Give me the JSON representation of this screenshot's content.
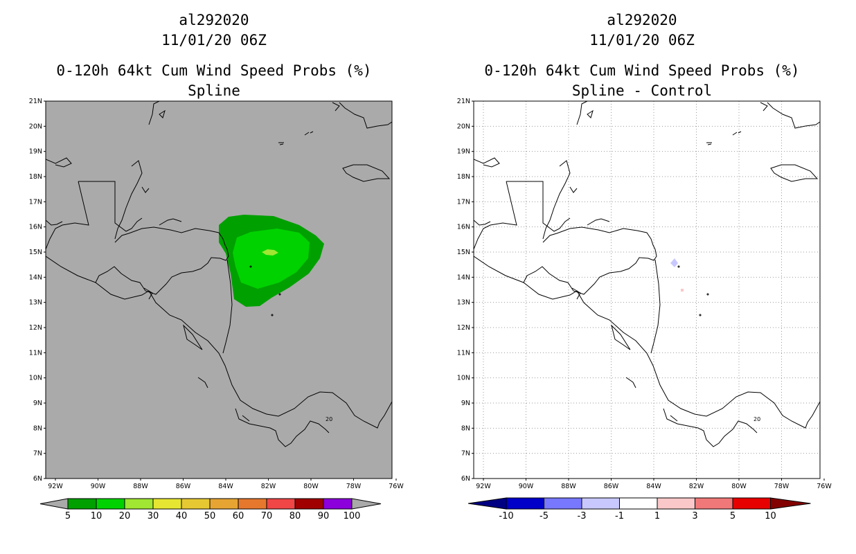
{
  "panels": [
    {
      "storm_id": "al292020",
      "datetime": "11/01/20 06Z",
      "product": "0-120h 64kt Cum Wind Speed Probs (%)",
      "subtitle": "Spline",
      "background": "#aaaaaa",
      "colorbar": {
        "labels": [
          "5",
          "10",
          "20",
          "30",
          "40",
          "50",
          "60",
          "70",
          "80",
          "90",
          "100"
        ],
        "colors": [
          "#00a000",
          "#00d200",
          "#a0e632",
          "#e6e632",
          "#e6c832",
          "#e6a532",
          "#e6782d",
          "#f04646",
          "#a00000",
          "#8c00dc"
        ]
      }
    },
    {
      "storm_id": "al292020",
      "datetime": "11/01/20 06Z",
      "product": "0-120h 64kt Cum Wind Speed Probs (%)",
      "subtitle": "Spline - Control",
      "background": "#ffffff",
      "colorbar": {
        "labels": [
          "-10",
          "-5",
          "-3",
          "-1",
          "1",
          "3",
          "5",
          "10"
        ],
        "colors": [
          "#0000c8",
          "#7878ff",
          "#c8c8ff",
          "#ffffff",
          "#fac8c8",
          "#f07878",
          "#e60000"
        ],
        "left_cap": "#000082",
        "right_cap": "#820000"
      }
    }
  ],
  "map": {
    "lat_labels": [
      "21N",
      "20N",
      "19N",
      "18N",
      "17N",
      "16N",
      "15N",
      "14N",
      "13N",
      "12N",
      "11N",
      "10N",
      "9N",
      "8N",
      "7N",
      "6N"
    ],
    "lon_labels": [
      "92W",
      "90W",
      "88W",
      "86W",
      "84W",
      "82W",
      "80W",
      "78W",
      "76W"
    ],
    "inset_label": "20"
  }
}
